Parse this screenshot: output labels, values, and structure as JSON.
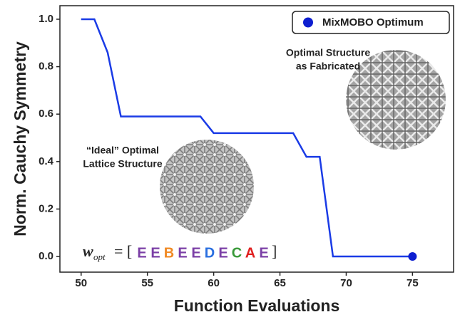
{
  "chart_data": {
    "type": "line",
    "x_label": "Function Evaluations",
    "y_label": "Norm. Cauchy Symmetry",
    "xlim": [
      48.4,
      78.1
    ],
    "xticks": [
      50,
      55,
      60,
      65,
      70,
      75
    ],
    "ylim": [
      -0.066,
      1.057
    ],
    "yticks": [
      {
        "value": 0,
        "label": "0.0"
      },
      0.2,
      0.4,
      0.6,
      0.8,
      {
        "value": 1,
        "label": "1.0"
      }
    ],
    "series": [
      {
        "color": "#1a3be6",
        "x": [
          50,
          51,
          52,
          53,
          59,
          60,
          66,
          67,
          68,
          69,
          75
        ],
        "values": [
          1.0,
          1.0,
          0.86,
          0.59,
          0.59,
          0.52,
          0.52,
          0.42,
          0.42,
          0.0,
          0.0
        ]
      },
      {
        "name": "MixMOBO Optimum",
        "color": "#0d1ed0",
        "style": "marker",
        "x": [
          75
        ],
        "values": [
          0.0
        ]
      }
    ],
    "legend": "upper right",
    "annotations": [
      {
        "lines": [
          "Optimal Structure",
          "as Fabricated"
        ]
      },
      {
        "lines": [
          "“Ideal” Optimal",
          "Lattice Structure"
        ]
      }
    ],
    "formula": {
      "symbol": "w",
      "subscript": "opt",
      "open": "= [",
      "close": "]",
      "letters": [
        "E",
        "E",
        "B",
        "E",
        "E",
        "D",
        "E",
        "C",
        "A",
        "E"
      ],
      "letter_colors": [
        "#7b3fa6",
        "#7b3fa6",
        "#f08a24",
        "#7b3fa6",
        "#7b3fa6",
        "#2a6fe0",
        "#7b3fa6",
        "#3a9a3a",
        "#e02020",
        "#7b3fa6"
      ]
    }
  }
}
